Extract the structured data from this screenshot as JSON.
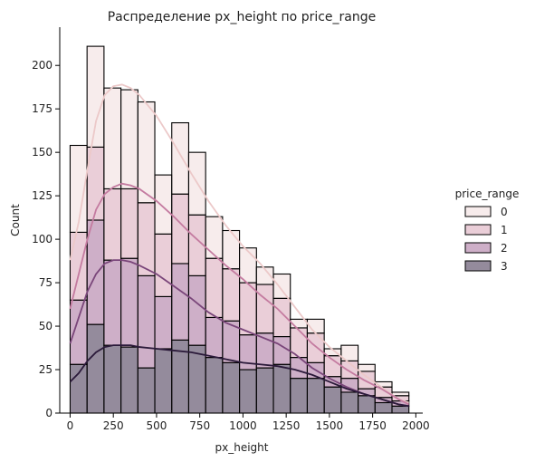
{
  "chart_data": {
    "type": "histogram",
    "title": "Распределение px_height по price_range",
    "xlabel": "px_height",
    "ylabel": "Count",
    "xlim": [
      -60,
      2040
    ],
    "ylim": [
      0,
      222
    ],
    "x_ticks": [
      0,
      250,
      500,
      750,
      1000,
      1250,
      1500,
      1750,
      2000
    ],
    "y_ticks": [
      0,
      25,
      50,
      75,
      100,
      125,
      150,
      175,
      200
    ],
    "bin_width": 98,
    "bin_start": 0,
    "stacked": true,
    "kde": true,
    "legend_title": "price_range",
    "legend_position": "right",
    "series": [
      {
        "name": "0",
        "color": "#f0dcdc",
        "values": [
          50,
          58,
          58,
          57,
          58,
          34,
          41,
          36,
          24,
          22,
          20,
          10,
          14,
          5,
          8,
          4,
          9,
          4,
          3,
          2
        ]
      },
      {
        "name": "1",
        "color": "#d9a5b8",
        "values": [
          39,
          42,
          41,
          40,
          42,
          36,
          40,
          35,
          34,
          30,
          30,
          28,
          22,
          17,
          17,
          12,
          10,
          10,
          6,
          3
        ]
      },
      {
        "name": "2",
        "color": "#a56e9a",
        "values": [
          37,
          60,
          49,
          51,
          53,
          30,
          44,
          40,
          23,
          24,
          20,
          20,
          16,
          12,
          9,
          6,
          8,
          4,
          3,
          3
        ]
      },
      {
        "name": "3",
        "color": "#3d2b4b",
        "values": [
          28,
          51,
          39,
          38,
          26,
          37,
          42,
          39,
          32,
          29,
          25,
          26,
          28,
          20,
          20,
          15,
          12,
          10,
          6,
          4
        ]
      }
    ],
    "kde_curves": [
      {
        "name": "0",
        "color": "#ecc9c9",
        "x": [
          0,
          50,
          100,
          150,
          200,
          250,
          300,
          350,
          400,
          500,
          600,
          700,
          800,
          900,
          1000,
          1100,
          1200,
          1300,
          1400,
          1500,
          1600,
          1700,
          1800,
          1900,
          1960
        ],
        "y": [
          88,
          110,
          140,
          168,
          183,
          188,
          189,
          187,
          183,
          171,
          155,
          138,
          122,
          108,
          96,
          86,
          74,
          61,
          48,
          38,
          30,
          22,
          15,
          8,
          6
        ]
      },
      {
        "name": "1",
        "color": "#c47ba0",
        "x": [
          0,
          50,
          100,
          150,
          200,
          250,
          300,
          350,
          400,
          500,
          600,
          700,
          800,
          900,
          1000,
          1100,
          1200,
          1300,
          1400,
          1500,
          1600,
          1700,
          1800,
          1900,
          1960
        ],
        "y": [
          60,
          80,
          100,
          117,
          126,
          130,
          132,
          131,
          129,
          122,
          113,
          103,
          94,
          85,
          77,
          68,
          60,
          50,
          40,
          32,
          25,
          19,
          14,
          8,
          5
        ]
      },
      {
        "name": "2",
        "color": "#7a467a",
        "x": [
          0,
          50,
          100,
          150,
          200,
          250,
          300,
          350,
          400,
          500,
          600,
          700,
          800,
          900,
          1000,
          1100,
          1200,
          1300,
          1400,
          1500,
          1600,
          1700,
          1800,
          1900,
          1960
        ],
        "y": [
          40,
          55,
          70,
          80,
          86,
          88,
          88,
          87,
          85,
          80,
          73,
          66,
          58,
          52,
          48,
          44,
          40,
          34,
          26,
          20,
          15,
          11,
          8,
          5,
          4
        ]
      },
      {
        "name": "3",
        "color": "#2b1a3a",
        "x": [
          0,
          50,
          100,
          150,
          200,
          250,
          300,
          350,
          400,
          500,
          600,
          700,
          800,
          900,
          1000,
          1100,
          1200,
          1300,
          1400,
          1500,
          1600,
          1700,
          1800,
          1900,
          1960
        ],
        "y": [
          18,
          23,
          30,
          35,
          38,
          39,
          39,
          39,
          38,
          37,
          36,
          35,
          33,
          31,
          29,
          28,
          27,
          25,
          22,
          18,
          14,
          11,
          8,
          5,
          4
        ]
      }
    ]
  }
}
